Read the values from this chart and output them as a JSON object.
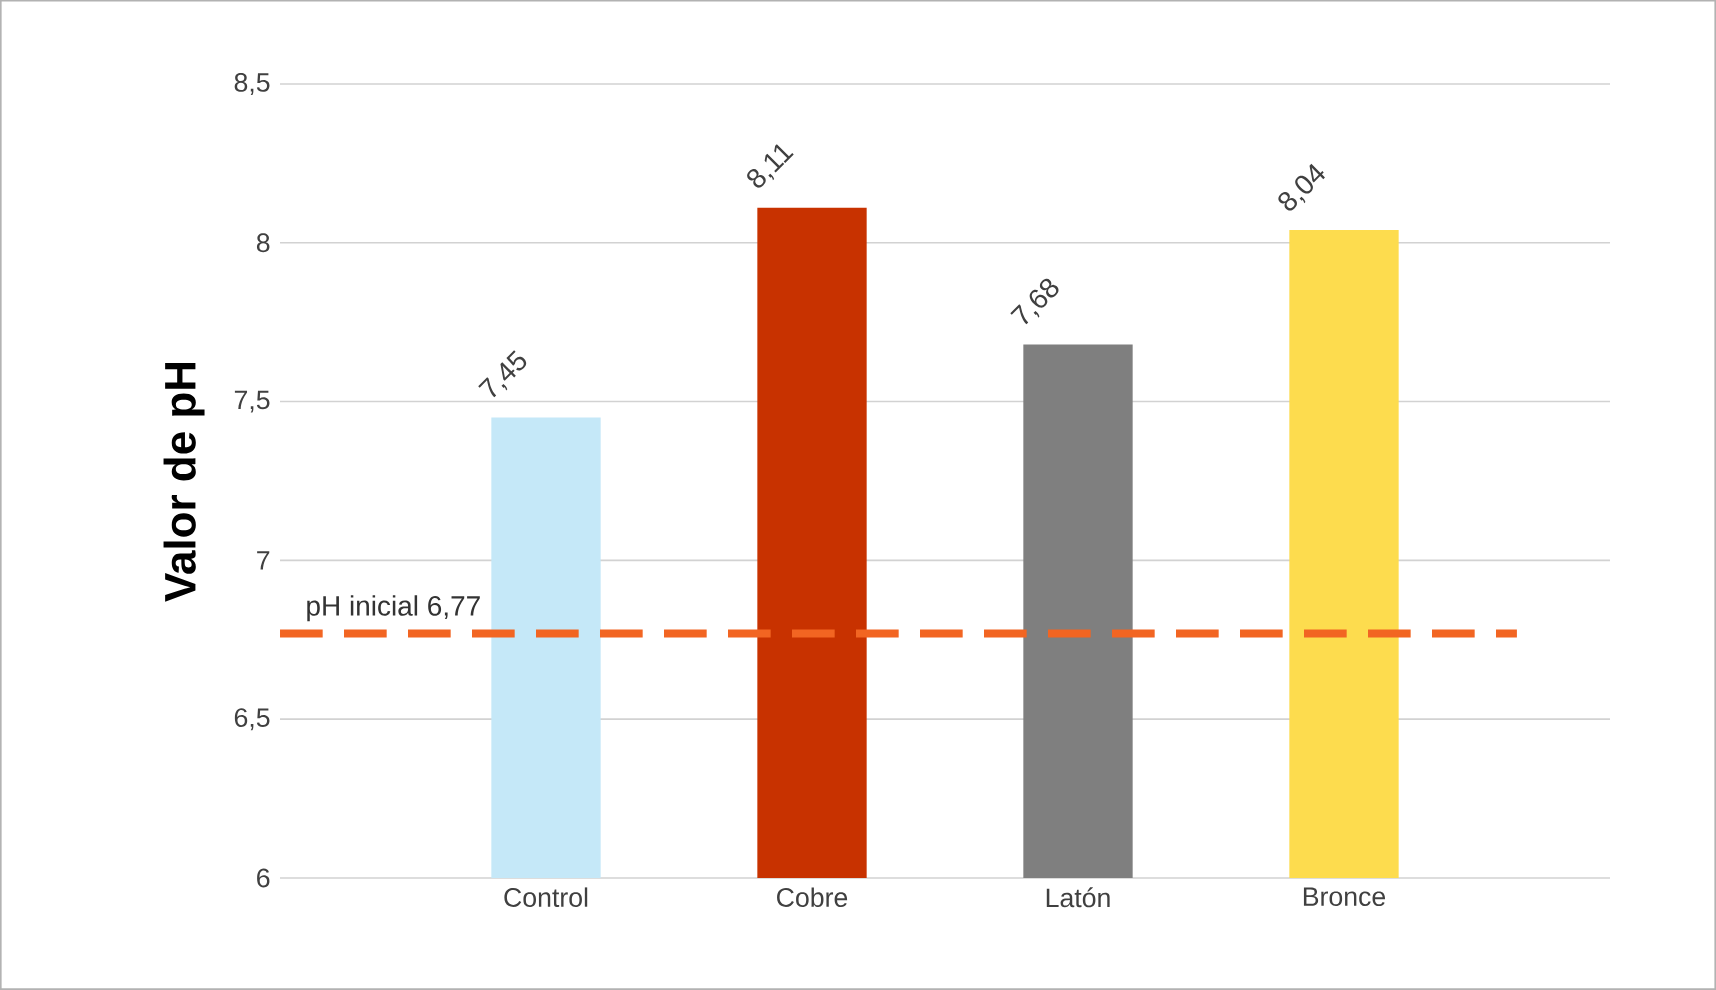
{
  "chart_data": {
    "type": "bar",
    "ylabel": "Valor de pH",
    "categories": [
      "Control",
      "Cobre",
      "Latón",
      "Bronce"
    ],
    "values": [
      7.45,
      8.11,
      7.68,
      8.04
    ],
    "colors": [
      "#c5e8f8",
      "#c83200",
      "#7f7f7f",
      "#fddc4e"
    ],
    "value_labels": [
      "7,45",
      "8,11",
      "7,68",
      "8,04"
    ],
    "ylim": [
      6,
      8.5
    ],
    "yticks": [
      6,
      {
        "value": 6.5,
        "label": "6,5"
      },
      7,
      {
        "value": 7.5,
        "label": "7,5"
      },
      8,
      {
        "value": 8.5,
        "label": "8,5"
      }
    ],
    "grid": "y",
    "ref_lines": [
      {
        "axis": "y",
        "value": 6.77,
        "label": "pH inicial 6,77",
        "color": "#f26522",
        "line_style": "dashed"
      }
    ]
  }
}
